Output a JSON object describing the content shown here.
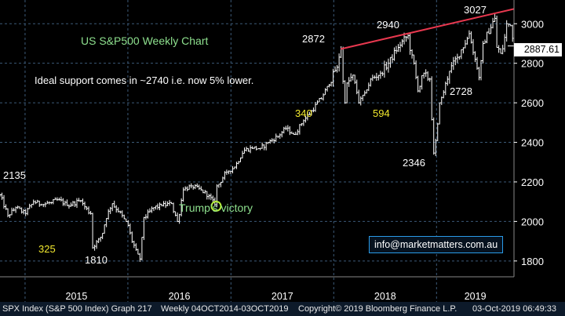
{
  "chart_data": {
    "type": "line",
    "style": "weekly price bars",
    "title": "US S&P500 Weekly Chart",
    "subtitle": "Ideal support comes in ~2740 i.e. now 5% lower.",
    "security_label": "SPX Index (S&P 500 Index) Graph 217",
    "period_label": "Weekly 04OCT2014-03OCT2019",
    "copyright": "Copyright© 2019 Bloomberg Finance L.P.",
    "timestamp": "03-Oct-2019 06:49:33",
    "email": "info@marketmatters.com.au",
    "last_price_label": "2887.61",
    "y_axis": {
      "side": "right",
      "ticks": [
        "1800",
        "2000",
        "2200",
        "2400",
        "2600",
        "2800",
        "3000"
      ],
      "tick_values": [
        1800,
        2000,
        2200,
        2400,
        2600,
        2800,
        3000
      ],
      "range": [
        1720,
        3120
      ],
      "grid": true
    },
    "x_axis": {
      "years": [
        "2015",
        "2016",
        "2017",
        "2018",
        "2019"
      ],
      "range": [
        "2014-10-04",
        "2019-10-03"
      ],
      "year_starts": [
        "2015-01-01",
        "2016-01-01",
        "2017-01-01",
        "2018-01-01",
        "2019-01-01"
      ]
    },
    "colors": {
      "background": "#000000",
      "price": "#ffffff",
      "trendline": "#e8384f",
      "grid": "#3c5a78",
      "title": "#8ee08e",
      "callout": "#f2e92e",
      "marker": "#b6f03a"
    },
    "series": [
      {
        "x": [
          "2014-10-04",
          "2014-11-01",
          "2014-12-01",
          "2015-01-01",
          "2015-02-01",
          "2015-03-01",
          "2015-04-01",
          "2015-05-01",
          "2015-06-01",
          "2015-07-15",
          "2015-08-20",
          "2015-08-26",
          "2015-09-29",
          "2015-10-15",
          "2015-11-05",
          "2015-12-01",
          "2016-01-01",
          "2016-01-20",
          "2016-02-11",
          "2016-03-01",
          "2016-04-01",
          "2016-05-01",
          "2016-06-01",
          "2016-06-27",
          "2016-07-15",
          "2016-08-15",
          "2016-09-15",
          "2016-10-15",
          "2016-11-04",
          "2016-11-15",
          "2016-12-15",
          "2017-01-15",
          "2017-02-15",
          "2017-03-15",
          "2017-04-15",
          "2017-05-15",
          "2017-06-15",
          "2017-07-15",
          "2017-08-15",
          "2017-09-15",
          "2017-10-15",
          "2017-11-15",
          "2017-12-15",
          "2018-01-10",
          "2018-01-26",
          "2018-02-08",
          "2018-02-20",
          "2018-03-10",
          "2018-04-02",
          "2018-04-20",
          "2018-05-15",
          "2018-06-15",
          "2018-07-15",
          "2018-08-15",
          "2018-09-20",
          "2018-10-10",
          "2018-10-29",
          "2018-11-15",
          "2018-12-05",
          "2018-12-24",
          "2019-01-15",
          "2019-02-15",
          "2019-03-15",
          "2019-04-30",
          "2019-05-15",
          "2019-06-03",
          "2019-06-15",
          "2019-07-26",
          "2019-08-05",
          "2019-08-20",
          "2019-09-10",
          "2019-09-20",
          "2019-10-03"
        ],
        "y": [
          2135,
          2030,
          2070,
          2040,
          2100,
          2085,
          2095,
          2110,
          2080,
          2105,
          2040,
          1867,
          1920,
          2015,
          2090,
          2050,
          1980,
          1880,
          1810,
          2020,
          2070,
          2080,
          2090,
          2000,
          2160,
          2180,
          2160,
          2130,
          2085,
          2180,
          2250,
          2275,
          2360,
          2370,
          2370,
          2400,
          2430,
          2470,
          2440,
          2510,
          2560,
          2620,
          2690,
          2780,
          2872,
          2600,
          2700,
          2740,
          2600,
          2650,
          2720,
          2750,
          2800,
          2880,
          2940,
          2800,
          2660,
          2750,
          2720,
          2346,
          2600,
          2760,
          2830,
          2950,
          2820,
          2728,
          2900,
          3027,
          2880,
          2850,
          3000,
          2990,
          2887.61
        ]
      }
    ],
    "trendline": {
      "x": [
        "2018-01-26",
        "2019-10-03"
      ],
      "y": [
        2872,
        3075
      ]
    },
    "annotations": [
      {
        "text": "2135",
        "x": "2014-10-04",
        "y": 2135,
        "color": "white"
      },
      {
        "text": "325",
        "x": "2015-08-26",
        "y": 1867,
        "color": "yellow"
      },
      {
        "text": "1810",
        "x": "2016-02-11",
        "y": 1810,
        "color": "white"
      },
      {
        "text": "Trump's victory",
        "x": "2016-11-04",
        "y": 2085,
        "color": "green"
      },
      {
        "text": "2872",
        "x": "2018-01-26",
        "y": 2872,
        "color": "white"
      },
      {
        "text": "340",
        "x": "2018-01-26",
        "y": 2872,
        "color": "yellow"
      },
      {
        "text": "2940",
        "x": "2018-09-20",
        "y": 2940,
        "color": "white"
      },
      {
        "text": "594",
        "x": "2018-09-20",
        "y": 2940,
        "color": "yellow"
      },
      {
        "text": "2346",
        "x": "2018-12-24",
        "y": 2346,
        "color": "white"
      },
      {
        "text": "2728",
        "x": "2019-06-03",
        "y": 2728,
        "color": "white"
      },
      {
        "text": "3027",
        "x": "2019-07-26",
        "y": 3027,
        "color": "white"
      }
    ]
  }
}
